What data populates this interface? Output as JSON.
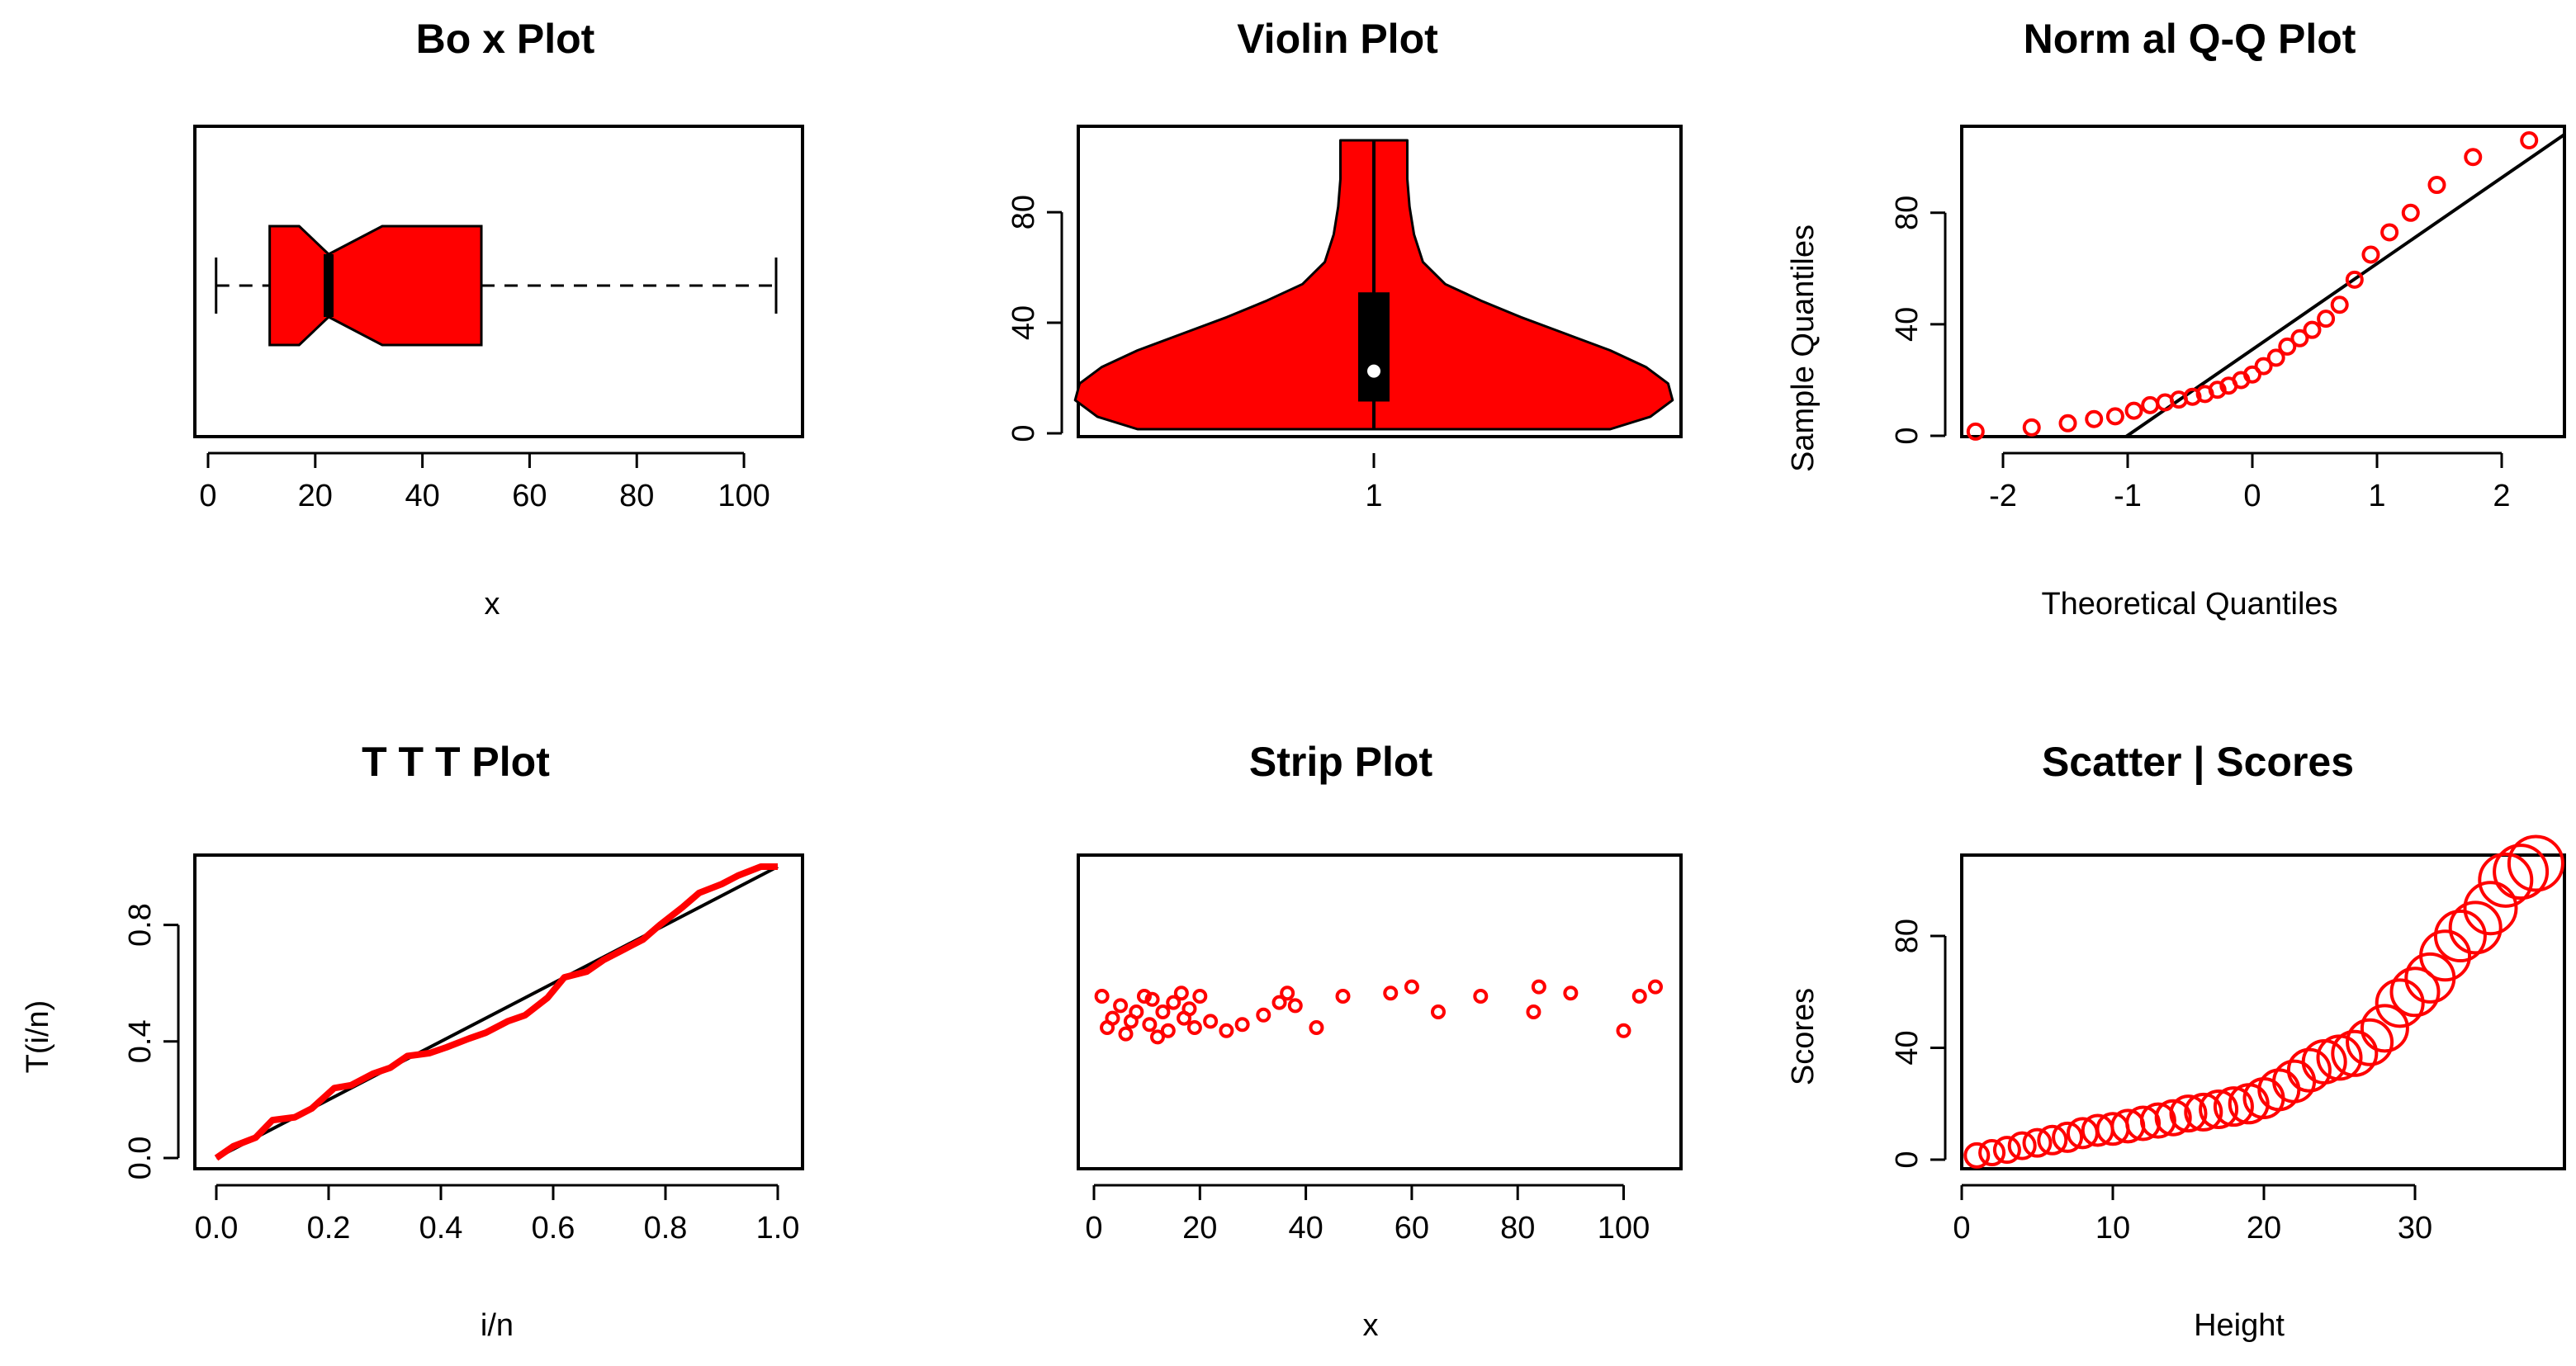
{
  "chart_data": [
    {
      "type": "box",
      "title": "Bo x Plot",
      "xlabel": "x",
      "ylabel": "",
      "xlim": [
        0,
        107
      ],
      "xticks": [
        0,
        20,
        40,
        60,
        80,
        100
      ],
      "stats": {
        "min": 1.5,
        "q1": 11.5,
        "median": 22.5,
        "q3": 51,
        "max": 106,
        "notch_low": 17,
        "notch_high": 32.5
      },
      "fill": "#ff0000"
    },
    {
      "type": "violin",
      "title": "Violin Plot",
      "xlabel": "",
      "ylabel": "",
      "xticks": [
        1
      ],
      "yticks": [
        0,
        40,
        80
      ],
      "ylim": [
        0,
        106
      ],
      "density": {
        "y": [
          1.5,
          6,
          12,
          18,
          24,
          30,
          36,
          42,
          48,
          54,
          62,
          72,
          82,
          92,
          100,
          106
        ],
        "halfwidth": [
          0.53,
          0.62,
          0.67,
          0.66,
          0.61,
          0.53,
          0.43,
          0.33,
          0.24,
          0.16,
          0.11,
          0.09,
          0.08,
          0.075,
          0.075,
          0.075
        ]
      },
      "box": {
        "q1": 11.5,
        "q3": 51,
        "median": 22.5,
        "min": 1.5,
        "max": 106
      },
      "fill": "#ff0000"
    },
    {
      "type": "scatter",
      "title": "Norm al Q-Q Plot",
      "xlabel": "Theoretical Quantiles",
      "ylabel": "Sample Quantiles",
      "xticks": [
        -2,
        -1,
        0,
        1,
        2
      ],
      "yticks": [
        0,
        40,
        80
      ],
      "xlim": [
        -2.3,
        2.3
      ],
      "ylim": [
        0,
        106
      ],
      "x": [
        -2.22,
        -1.77,
        -1.48,
        -1.27,
        -1.1,
        -0.95,
        -0.82,
        -0.7,
        -0.59,
        -0.48,
        -0.38,
        -0.28,
        -0.19,
        -0.09,
        0.0,
        0.09,
        0.19,
        0.28,
        0.38,
        0.48,
        0.59,
        0.7,
        0.82,
        0.95,
        1.1,
        1.27,
        1.48,
        1.77,
        2.22
      ],
      "y": [
        1.5,
        3,
        4.5,
        6,
        7,
        9,
        11,
        12,
        13,
        14,
        15,
        16.5,
        18,
        20,
        22,
        25,
        28,
        32,
        35,
        38,
        42,
        47,
        56,
        65,
        73,
        80,
        90,
        100,
        106
      ],
      "line": {
        "slope": 30,
        "intercept": 33
      },
      "color": "#ff0000"
    },
    {
      "type": "line",
      "title": "T T T Plot",
      "xlabel": "i/n",
      "ylabel": "T(i/n)",
      "xticks": [
        0.0,
        0.2,
        0.4,
        0.6,
        0.8,
        1.0
      ],
      "yticks": [
        0.0,
        0.4,
        0.8
      ],
      "xlim": [
        0,
        1
      ],
      "ylim": [
        0,
        1
      ],
      "x": [
        0,
        0.03,
        0.07,
        0.1,
        0.14,
        0.17,
        0.21,
        0.24,
        0.28,
        0.31,
        0.34,
        0.38,
        0.41,
        0.45,
        0.48,
        0.52,
        0.55,
        0.59,
        0.62,
        0.66,
        0.69,
        0.72,
        0.76,
        0.79,
        0.83,
        0.86,
        0.9,
        0.93,
        0.97,
        1.0
      ],
      "y": [
        0,
        0.04,
        0.07,
        0.13,
        0.14,
        0.17,
        0.24,
        0.25,
        0.29,
        0.31,
        0.35,
        0.36,
        0.38,
        0.41,
        0.43,
        0.47,
        0.49,
        0.55,
        0.62,
        0.64,
        0.68,
        0.71,
        0.75,
        0.8,
        0.86,
        0.91,
        0.94,
        0.97,
        1.0,
        1.0
      ],
      "reference": "diagonal",
      "color": "#ff0000"
    },
    {
      "type": "strip",
      "title": "Strip Plot",
      "xlabel": "x",
      "ylabel": "",
      "xticks": [
        0,
        20,
        40,
        60,
        80,
        100
      ],
      "xlim": [
        0,
        107
      ],
      "x": [
        1.5,
        2.5,
        3.5,
        5,
        6,
        7,
        8,
        9.5,
        10.5,
        11,
        12,
        13,
        14,
        15,
        16.5,
        17,
        18,
        19,
        20,
        22,
        25,
        28,
        32,
        35,
        36.5,
        38,
        42,
        47,
        56,
        60,
        65,
        73,
        83,
        84,
        90,
        100,
        103,
        106
      ],
      "jitter": [
        0.55,
        0.45,
        0.48,
        0.52,
        0.43,
        0.47,
        0.5,
        0.55,
        0.46,
        0.54,
        0.42,
        0.5,
        0.44,
        0.53,
        0.56,
        0.48,
        0.51,
        0.45,
        0.55,
        0.47,
        0.44,
        0.46,
        0.49,
        0.53,
        0.56,
        0.52,
        0.45,
        0.55,
        0.56,
        0.58,
        0.5,
        0.55,
        0.5,
        0.58,
        0.56,
        0.44,
        0.55,
        0.58
      ],
      "color": "#ff0000"
    },
    {
      "type": "scatter",
      "title": "Scatter | Scores",
      "xlabel": "Height",
      "ylabel": "Scores",
      "xticks": [
        0,
        10,
        20,
        30
      ],
      "yticks": [
        0,
        40,
        80
      ],
      "xlim": [
        0,
        39
      ],
      "ylim": [
        0,
        106
      ],
      "x": [
        1,
        2,
        3,
        4,
        5,
        6,
        7,
        8,
        9,
        10,
        11,
        12,
        13,
        14,
        15,
        16,
        17,
        18,
        19,
        20,
        21,
        22,
        23,
        24,
        25,
        26,
        27,
        28,
        29,
        30,
        31,
        32,
        33,
        34,
        35,
        36,
        37,
        38
      ],
      "y": [
        1.5,
        2.5,
        3.5,
        5,
        6,
        7,
        8,
        9.5,
        10.5,
        11,
        12,
        13,
        14,
        15,
        16.5,
        17,
        18,
        19,
        20,
        22,
        25,
        28,
        32,
        35,
        36.5,
        38,
        42,
        47,
        56,
        60,
        65,
        73,
        80,
        83,
        90,
        100,
        103,
        106
      ],
      "color": "#ff0000"
    }
  ]
}
